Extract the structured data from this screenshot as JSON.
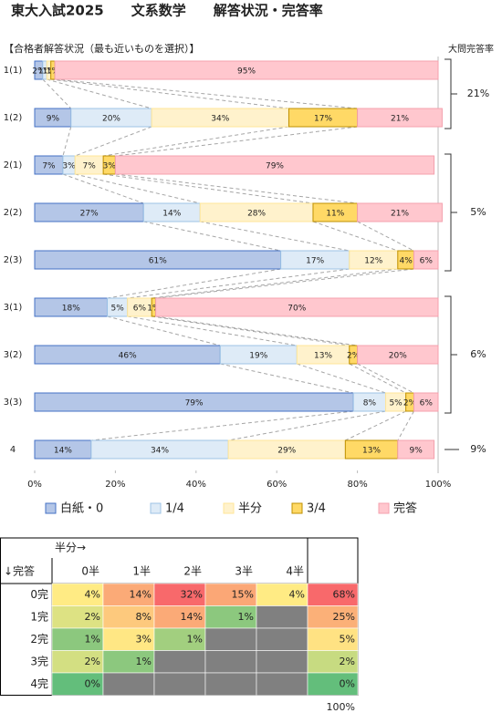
{
  "chart_data": {
    "type": "bar",
    "orientation": "horizontal",
    "stacked": true,
    "title": "東大入試2025　　文系数学　　解答状況・完答率",
    "subtitle": "【合格者解答状況（最も近いものを選択）】",
    "categories": [
      "1(1)",
      "1(2)",
      "2(1)",
      "2(2)",
      "2(3)",
      "3(1)",
      "3(2)",
      "3(3)",
      "4"
    ],
    "series": [
      {
        "name": "白紙・0",
        "color": "#b4c6e7",
        "border": "#4472c4",
        "values": [
          2,
          9,
          7,
          27,
          61,
          18,
          46,
          79,
          14
        ],
        "value_labels": [
          "2%",
          "9%",
          "7%",
          "27%",
          "61%",
          "18%",
          "46%",
          "79%",
          "14%"
        ]
      },
      {
        "name": "1/4",
        "color": "#deebf7",
        "border": "#9dc3e6",
        "values": [
          1,
          20,
          3,
          14,
          17,
          5,
          19,
          8,
          34
        ],
        "value_labels": [
          "1%",
          "20%",
          "3%",
          "14%",
          "17%",
          "5%",
          "19%",
          "8%",
          "34%"
        ]
      },
      {
        "name": "半分",
        "color": "#fff2cc",
        "border": "#ffe699",
        "values": [
          1,
          34,
          7,
          28,
          12,
          6,
          13,
          5,
          29
        ],
        "value_labels": [
          "1%",
          "34%",
          "7%",
          "28%",
          "12%",
          "6%",
          "13%",
          "5%",
          "29%"
        ]
      },
      {
        "name": "3/4",
        "color": "#ffd966",
        "border": "#bf9000",
        "values": [
          1,
          17,
          3,
          11,
          4,
          1,
          2,
          2,
          13
        ],
        "value_labels": [
          "1%",
          "17%",
          "3%",
          "11%",
          "4%",
          "1%",
          "2%",
          "2%",
          "13%"
        ]
      },
      {
        "name": "完答",
        "color": "#ffc7ce",
        "border": "#f4a0ae",
        "values": [
          95,
          21,
          79,
          21,
          6,
          70,
          20,
          6,
          9
        ],
        "value_labels": [
          "95%",
          "21%",
          "79%",
          "21%",
          "6%",
          "70%",
          "20%",
          "6%",
          "9%"
        ]
      }
    ],
    "xlim": [
      0,
      100
    ],
    "xticks": [
      {
        "value": 0,
        "label": "0%"
      },
      {
        "value": 20,
        "label": "20%"
      },
      {
        "value": 40,
        "label": "40%"
      },
      {
        "value": 60,
        "label": "60%"
      },
      {
        "value": 80,
        "label": "80%"
      },
      {
        "value": 100,
        "label": "100%"
      }
    ],
    "group_title": "大問完答率",
    "group_rates": {
      "values": [
        21,
        5,
        6,
        9
      ],
      "value_labels": [
        "21%",
        "5%",
        "6%",
        "9%"
      ]
    }
  },
  "table": {
    "col_header": "半分→",
    "row_header": "↓完答",
    "columns": [
      "0半",
      "1半",
      "2半",
      "3半",
      "4半"
    ],
    "rows": [
      {
        "label": "0完",
        "cells": [
          "4%",
          "14%",
          "32%",
          "15%",
          "4%"
        ],
        "colors": [
          "#ffeb84",
          "#fbaa77",
          "#f8696b",
          "#fba776",
          "#ffeb84"
        ],
        "total": "68%",
        "total_color": "#f8696b"
      },
      {
        "label": "1完",
        "cells": [
          "2%",
          "8%",
          "14%",
          "1%",
          null
        ],
        "colors": [
          "#dde283",
          "#fdc97d",
          "#fbaa77",
          "#8cc87e",
          null
        ],
        "total": "25%",
        "total_color": "#fbb078"
      },
      {
        "label": "2完",
        "cells": [
          "1%",
          "3%",
          "1%",
          null,
          null
        ],
        "colors": [
          "#8cc87e",
          "#ffe784",
          "#a2cf7f",
          null,
          null
        ],
        "total": "5%",
        "total_color": "#ffe283"
      },
      {
        "label": "3完",
        "cells": [
          "2%",
          "1%",
          null,
          null,
          null
        ],
        "colors": [
          "#d3df82",
          "#8cc87e",
          null,
          null,
          null
        ],
        "total": "2%",
        "total_color": "#c7db81"
      },
      {
        "label": "4完",
        "cells": [
          "0%",
          null,
          null,
          null,
          null
        ],
        "colors": [
          "#63be7b",
          null,
          null,
          null,
          null
        ],
        "total": "0%",
        "total_color": "#63be7b"
      }
    ],
    "grand_total": "100%"
  }
}
